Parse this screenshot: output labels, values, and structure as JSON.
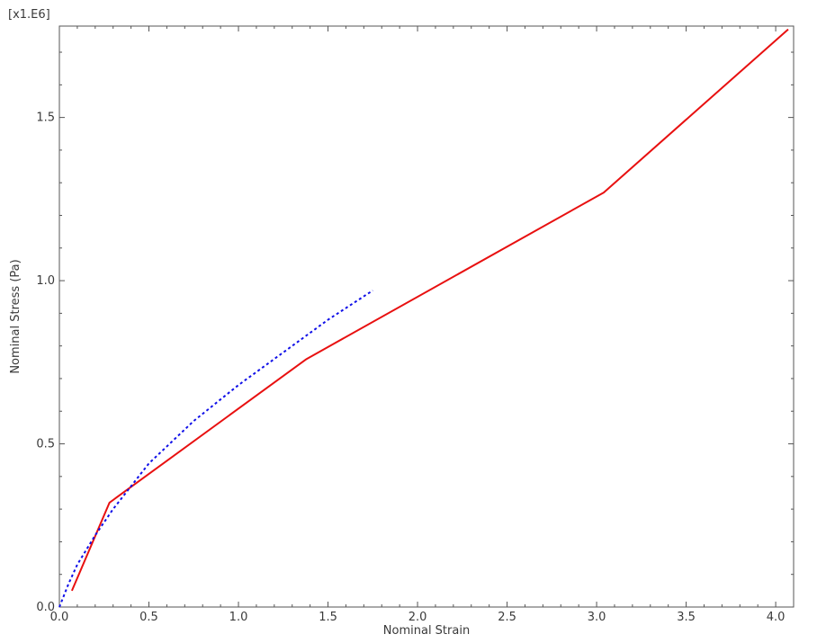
{
  "chart_data": {
    "type": "line",
    "title": "",
    "xlabel": "Nominal Strain",
    "ylabel": "Nominal Stress (Pa)",
    "y_multiplier_label": "[x1.E6]",
    "xlim": [
      0.0,
      4.1
    ],
    "ylim": [
      0.0,
      1.78
    ],
    "x_ticks": [
      0.0,
      0.5,
      1.0,
      1.5,
      2.0,
      2.5,
      3.0,
      3.5,
      4.0
    ],
    "x_tick_labels": [
      "0.0",
      "0.5",
      "1.0",
      "1.5",
      "2.0",
      "2.5",
      "3.0",
      "3.5",
      "4.0"
    ],
    "y_ticks": [
      0.0,
      0.5,
      1.0,
      1.5
    ],
    "y_tick_labels": [
      "0.0",
      "0.5",
      "1.0",
      "1.5"
    ],
    "grid": false,
    "legend": "none",
    "series": [
      {
        "color": "#e81010",
        "style": "solid",
        "x": [
          0.07,
          0.28,
          1.38,
          3.04,
          4.07
        ],
        "y": [
          0.05,
          0.32,
          0.76,
          1.27,
          1.77
        ]
      },
      {
        "color": "#1010e8",
        "style": "dotted",
        "x": [
          0.0,
          0.05,
          0.1,
          0.2,
          0.3,
          0.5,
          0.75,
          1.0,
          1.25,
          1.5,
          1.75
        ],
        "y": [
          0.0,
          0.07,
          0.13,
          0.22,
          0.3,
          0.44,
          0.57,
          0.68,
          0.78,
          0.88,
          0.97
        ]
      }
    ]
  }
}
